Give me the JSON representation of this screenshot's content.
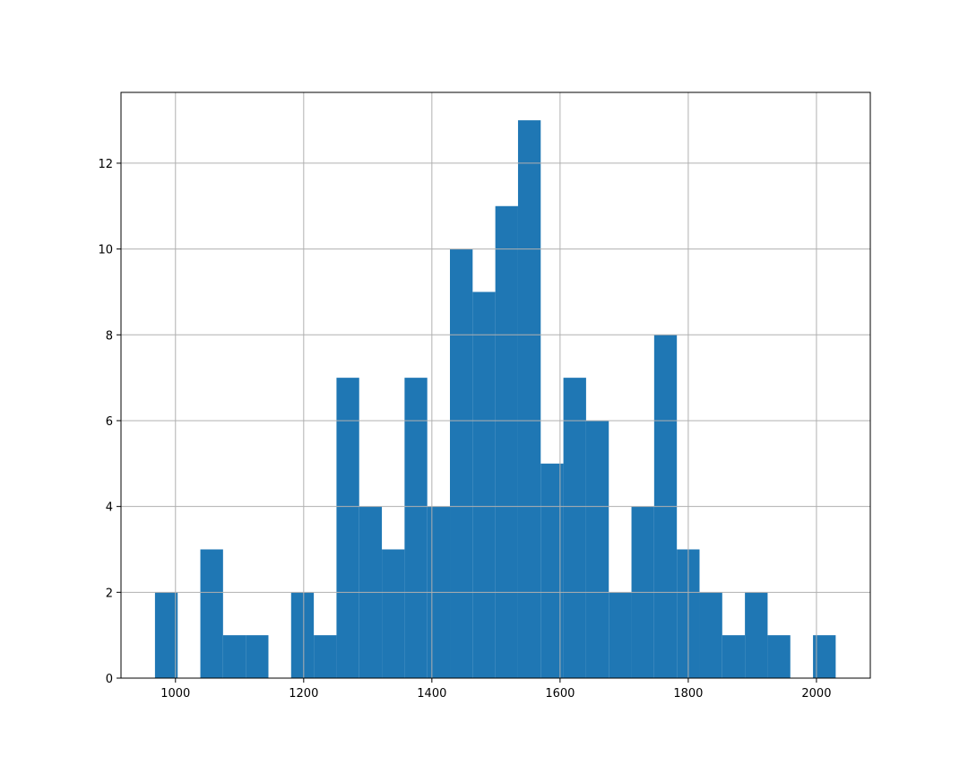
{
  "chart_data": {
    "type": "histogram",
    "bins": [
      968,
      1003.4,
      1038.8,
      1074.2,
      1109.6,
      1145,
      1180.4,
      1215.8,
      1251.2,
      1286.6,
      1322,
      1357.4,
      1392.8,
      1428.2,
      1463.6,
      1499,
      1534.4,
      1569.8,
      1605.2,
      1640.6,
      1676,
      1711.4,
      1746.8,
      1782.2,
      1817.6,
      1853,
      1888.4,
      1923.8,
      1959.2,
      1994.6,
      2030
    ],
    "values": [
      2,
      0,
      3,
      1,
      1,
      0,
      2,
      1,
      7,
      4,
      3,
      7,
      4,
      10,
      9,
      11,
      13,
      5,
      7,
      6,
      2,
      4,
      8,
      3,
      2,
      1,
      2,
      1,
      0,
      1
    ],
    "color": "#1f77b4",
    "xlim": [
      915,
      2084
    ],
    "ylim": [
      0,
      13.65
    ],
    "xticks": [
      1000,
      1200,
      1400,
      1600,
      1800,
      2000
    ],
    "yticks": [
      0,
      2,
      4,
      6,
      8,
      10,
      12
    ],
    "grid": true
  }
}
